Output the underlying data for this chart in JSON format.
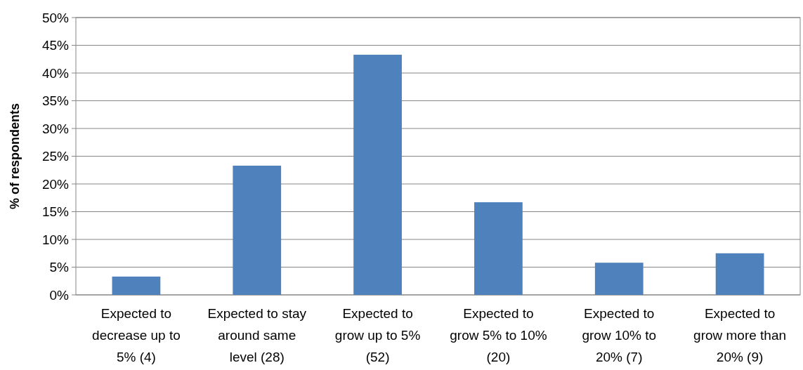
{
  "chart_data": {
    "type": "bar",
    "ylabel": "% of respondents",
    "categories": [
      "Expected to\ndecrease up to\n5% (4)",
      "Expected to stay\naround same\nlevel (28)",
      "Expected to\ngrow up to 5%\n(52)",
      "Expected to\ngrow 5% to 10%\n(20)",
      "Expected to\ngrow 10% to\n20% (7)",
      "Expected to\ngrow more than\n20% (9)"
    ],
    "values": [
      3.3,
      23.3,
      43.3,
      16.7,
      5.8,
      7.5
    ],
    "color": "#4f81bd",
    "ylim": [
      0,
      50
    ],
    "yticks": [
      {
        "value": 0,
        "label": "0%"
      },
      {
        "value": 5,
        "label": "5%"
      },
      {
        "value": 10,
        "label": "10%"
      },
      {
        "value": 15,
        "label": "15%"
      },
      {
        "value": 20,
        "label": "20%"
      },
      {
        "value": 25,
        "label": "25%"
      },
      {
        "value": 30,
        "label": "30%"
      },
      {
        "value": 35,
        "label": "35%"
      },
      {
        "value": 40,
        "label": "40%"
      },
      {
        "value": 45,
        "label": "45%"
      },
      {
        "value": 50,
        "label": "50%"
      }
    ],
    "grid": "y"
  }
}
